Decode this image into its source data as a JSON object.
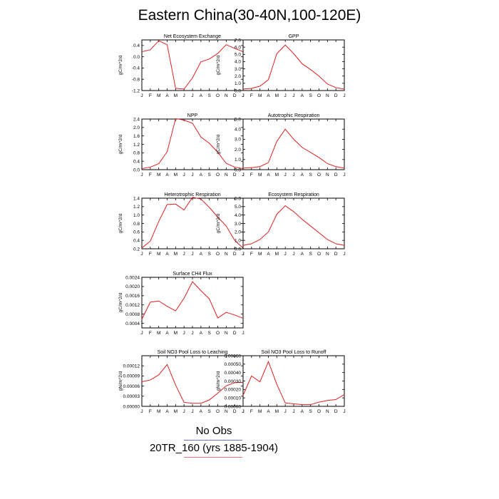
{
  "title": "Eastern China(30-40N,100-120E)",
  "legend": {
    "no_obs": "No Obs",
    "run": "20TR_160 (yrs 1885-1904)",
    "no_obs_color": "#6b74c9",
    "run_color": "#e8707a"
  },
  "chart_data": [
    {
      "type": "line",
      "title": "Net Ecosystem Exchange",
      "ylabel": "gC/m^2/d",
      "categories": [
        "J",
        "F",
        "M",
        "A",
        "M",
        "J",
        "J",
        "A",
        "S",
        "O",
        "N",
        "D",
        "J"
      ],
      "ylim": [
        -1.2,
        0.6
      ],
      "yticks": [
        -1.2,
        -0.8,
        -0.4,
        0.0,
        0.4
      ],
      "ytick_labels": [
        "-1.2",
        "-0.8",
        "-0.4",
        "0.0",
        "0.4"
      ],
      "series": [
        {
          "color": "#e02020",
          "values": [
            0.18,
            0.25,
            0.57,
            0.43,
            -1.12,
            -1.15,
            -0.75,
            -0.18,
            -0.08,
            0.12,
            0.43,
            0.3,
            0.18
          ]
        }
      ]
    },
    {
      "type": "line",
      "title": "GPP",
      "ylabel": "gC/m^2/d",
      "categories": [
        "J",
        "F",
        "M",
        "A",
        "M",
        "J",
        "J",
        "A",
        "S",
        "O",
        "N",
        "D",
        "J"
      ],
      "ylim": [
        0,
        7
      ],
      "yticks": [
        0,
        1,
        2,
        3,
        4,
        5,
        6,
        7
      ],
      "ytick_labels": [
        "0.0",
        "1.0",
        "2.0",
        "3.0",
        "4.0",
        "5.0",
        "6.0",
        "7.0"
      ],
      "series": [
        {
          "color": "#e02020",
          "values": [
            0.2,
            0.3,
            0.6,
            1.5,
            5.1,
            6.3,
            5.1,
            3.7,
            2.9,
            2.0,
            0.9,
            0.4,
            0.2
          ]
        }
      ]
    },
    {
      "type": "line",
      "title": "NPP",
      "ylabel": "gC/m^2/d",
      "categories": [
        "J",
        "F",
        "M",
        "A",
        "M",
        "J",
        "J",
        "A",
        "S",
        "O",
        "N",
        "D",
        "J"
      ],
      "ylim": [
        0,
        2.4
      ],
      "yticks": [
        0,
        0.4,
        0.8,
        1.2,
        1.6,
        2.0,
        2.4
      ],
      "ytick_labels": [
        "0.0",
        "0.4",
        "0.8",
        "1.2",
        "1.6",
        "2.0",
        "2.4"
      ],
      "series": [
        {
          "color": "#e02020",
          "values": [
            0.05,
            0.12,
            0.28,
            0.85,
            2.42,
            2.35,
            2.2,
            1.55,
            1.25,
            0.82,
            0.3,
            0.12,
            0.05
          ]
        }
      ]
    },
    {
      "type": "line",
      "title": "Autotrophic Respiration",
      "ylabel": "gC/m^2/d",
      "categories": [
        "J",
        "F",
        "M",
        "A",
        "M",
        "J",
        "J",
        "A",
        "S",
        "O",
        "N",
        "D",
        "J"
      ],
      "ylim": [
        0,
        5
      ],
      "yticks": [
        0,
        1,
        2,
        3,
        4,
        5
      ],
      "ytick_labels": [
        "0.0",
        "1.0",
        "2.0",
        "3.0",
        "4.0",
        "5.0"
      ],
      "series": [
        {
          "color": "#e02020",
          "values": [
            0.15,
            0.2,
            0.3,
            0.7,
            2.8,
            4.0,
            3.0,
            2.2,
            1.7,
            1.2,
            0.6,
            0.3,
            0.15
          ]
        }
      ]
    },
    {
      "type": "line",
      "title": "Heterotrophic Respiration",
      "ylabel": "gC/m^2/d",
      "categories": [
        "J",
        "F",
        "M",
        "A",
        "M",
        "J",
        "J",
        "A",
        "S",
        "O",
        "N",
        "D",
        "J"
      ],
      "ylim": [
        0.2,
        1.4
      ],
      "yticks": [
        0.2,
        0.4,
        0.6,
        0.8,
        1.0,
        1.2,
        1.4
      ],
      "ytick_labels": [
        "0.2",
        "0.4",
        "0.6",
        "0.8",
        "1.0",
        "1.2",
        "1.4"
      ],
      "series": [
        {
          "color": "#e02020",
          "values": [
            0.22,
            0.38,
            0.85,
            1.25,
            1.26,
            1.12,
            1.42,
            1.38,
            1.18,
            0.95,
            0.74,
            0.4,
            0.22
          ]
        }
      ]
    },
    {
      "type": "line",
      "title": "Ecosystem Respiration",
      "ylabel": "gC/m^2/d",
      "categories": [
        "J",
        "F",
        "M",
        "A",
        "M",
        "J",
        "J",
        "A",
        "S",
        "O",
        "N",
        "D",
        "J"
      ],
      "ylim": [
        0,
        6
      ],
      "yticks": [
        0,
        1,
        2,
        3,
        4,
        5,
        6
      ],
      "ytick_labels": [
        "0.0",
        "1.0",
        "2.0",
        "3.0",
        "4.0",
        "5.0",
        "6.0"
      ],
      "series": [
        {
          "color": "#e02020",
          "values": [
            0.4,
            0.6,
            1.1,
            2.0,
            4.1,
            5.1,
            4.4,
            3.5,
            2.7,
            1.9,
            1.1,
            0.6,
            0.4
          ]
        }
      ]
    },
    {
      "type": "line",
      "title": "Surface CH4 Flux",
      "ylabel": "gC/m^2/d",
      "categories": [
        "J",
        "F",
        "M",
        "A",
        "M",
        "J",
        "J",
        "A",
        "S",
        "O",
        "N",
        "D",
        "J"
      ],
      "ylim": [
        0.0002,
        0.0024
      ],
      "yticks": [
        0.0004,
        0.0008,
        0.0012,
        0.0016,
        0.002,
        0.0024
      ],
      "ytick_labels": [
        "0.0004",
        "0.0008",
        "0.0012",
        "0.0016",
        "0.0020",
        "0.0024"
      ],
      "series": [
        {
          "color": "#e02020",
          "values": [
            0.00058,
            0.00132,
            0.00137,
            0.00114,
            0.00094,
            0.00149,
            0.00221,
            0.00182,
            0.00146,
            0.00063,
            0.00088,
            0.00076,
            0.00062
          ]
        }
      ]
    },
    {
      "type": "line",
      "title": "Soil NO3 Pool Loss to Leaching",
      "ylabel": "gN/m^2/d",
      "categories": [
        "J",
        "F",
        "M",
        "A",
        "M",
        "J",
        "J",
        "A",
        "S",
        "O",
        "N",
        "D",
        "J"
      ],
      "ylim": [
        0,
        0.00015
      ],
      "yticks": [
        0,
        3e-05,
        6e-05,
        9e-05,
        0.00012
      ],
      "ytick_labels": [
        "0.00000",
        "0.00003",
        "0.00006",
        "0.00009",
        "0.00012"
      ],
      "series": [
        {
          "color": "#e02020",
          "values": [
            7.3e-05,
            7.8e-05,
            9.3e-05,
            0.000124,
            6.3e-05,
            1.2e-05,
            9e-06,
            9e-06,
            1.9e-05,
            3.9e-05,
            6.1e-05,
            7e-05,
            7.1e-05
          ]
        }
      ]
    },
    {
      "type": "line",
      "title": "Soil NO3 Pool Loss to Runoff",
      "ylabel": "gN/m^2/d",
      "categories": [
        "J",
        "F",
        "M",
        "A",
        "M",
        "J",
        "J",
        "A",
        "S",
        "O",
        "N",
        "D",
        "J"
      ],
      "ylim": [
        0,
        0.0006
      ],
      "yticks": [
        0,
        0.0001,
        0.0002,
        0.0003,
        0.0004,
        0.0005,
        0.0006
      ],
      "ytick_labels": [
        "0.00000",
        "0.00010",
        "0.00020",
        "0.00030",
        "0.00040",
        "0.00050",
        "0.00060"
      ],
      "series": [
        {
          "color": "#e02020",
          "values": [
            0.00013,
            0.00036,
            0.00029,
            0.00053,
            0.00026,
            4e-05,
            3e-05,
            2e-05,
            2e-05,
            5e-05,
            7e-05,
            8e-05,
            0.00014
          ]
        }
      ]
    }
  ]
}
